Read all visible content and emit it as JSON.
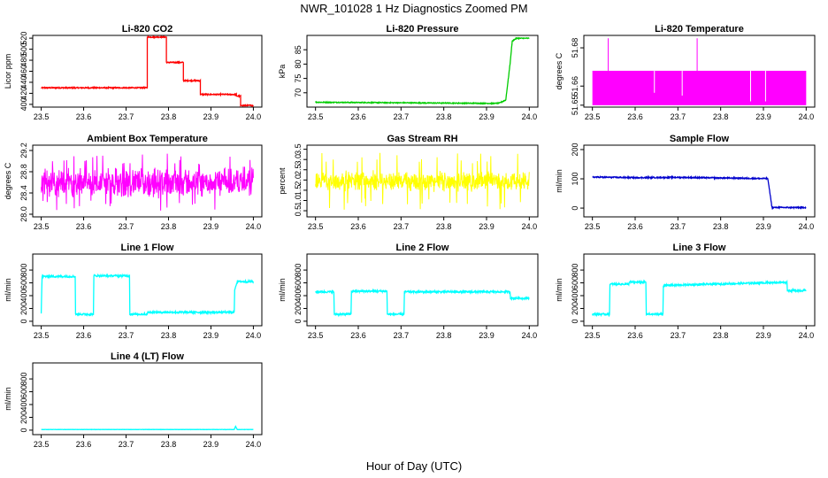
{
  "figure": {
    "title": "NWR_101028  1 Hz Diagnostics Zoomed PM",
    "xlabel": "Hour of Day (UTC)"
  },
  "chart_data": [
    {
      "id": "co2",
      "type": "line",
      "title": "Li-820 CO2",
      "ylabel": "Licor ppm",
      "xlim": [
        23.5,
        24.0
      ],
      "xticks": [
        "23.5",
        "23.6",
        "23.7",
        "23.8",
        "23.9",
        "24.0"
      ],
      "ylim": [
        395,
        525
      ],
      "yticks": [
        "400",
        "420",
        "440",
        "460",
        "480",
        "500",
        "520"
      ],
      "color": "#ff0000",
      "series": [
        {
          "name": "CO2",
          "noise": 1,
          "x": [
            23.5,
            23.75,
            23.75,
            23.795,
            23.795,
            23.835,
            23.835,
            23.875,
            23.875,
            23.96,
            23.96,
            23.97,
            23.97,
            24.0
          ],
          "values": [
            430,
            430,
            522,
            522,
            476,
            476,
            443,
            443,
            418,
            418,
            415,
            415,
            398,
            398
          ]
        }
      ]
    },
    {
      "id": "pressure",
      "type": "line",
      "title": "Li-820 Pressure",
      "ylabel": "kPa",
      "xlim": [
        23.5,
        24.0
      ],
      "xticks": [
        "23.5",
        "23.6",
        "23.7",
        "23.8",
        "23.9",
        "24.0"
      ],
      "ylim": [
        65,
        90
      ],
      "yticks": [
        "70",
        "75",
        "80",
        "85"
      ],
      "color": "#00cc00",
      "series": [
        {
          "name": "Pressure",
          "noise": 0.15,
          "x": [
            23.5,
            23.92,
            23.93,
            23.945,
            23.955,
            23.96,
            23.97,
            24.0
          ],
          "values": [
            66.7,
            66.3,
            66.4,
            67.5,
            80,
            88,
            89,
            89
          ]
        }
      ]
    },
    {
      "id": "licor-temp",
      "type": "line",
      "title": "Li-820 Temperature",
      "ylabel": "degrees C",
      "xlim": [
        23.5,
        24.0
      ],
      "xticks": [
        "23.5",
        "23.6",
        "23.7",
        "23.8",
        "23.9",
        "24.0"
      ],
      "ylim": [
        51.649,
        51.6865
      ],
      "yticks": [
        "51.65",
        "51.66",
        "51.68"
      ],
      "color": "#ff00ff",
      "band": [
        51.65,
        51.668
      ],
      "spikes_x": [
        23.537,
        23.745
      ],
      "spike_top": 51.685,
      "dips": [
        {
          "x": 23.645,
          "to": 51.6565
        },
        {
          "x": 23.71,
          "to": 51.655
        },
        {
          "x": 23.87,
          "to": 51.652
        },
        {
          "x": 23.905,
          "to": 51.652
        }
      ]
    },
    {
      "id": "box-temp",
      "type": "line",
      "title": "Ambient Box Temperature",
      "ylabel": "degrees C",
      "xlim": [
        23.5,
        24.0
      ],
      "xticks": [
        "23.5",
        "23.6",
        "23.7",
        "23.8",
        "23.9",
        "24.0"
      ],
      "ylim": [
        27.95,
        29.3
      ],
      "yticks": [
        "28.0",
        "28.4",
        "28.8",
        "29.2"
      ],
      "color": "#ff00ff",
      "noisy": {
        "center": 28.6,
        "spread": 0.32,
        "spike": 0.55
      }
    },
    {
      "id": "rh",
      "type": "line",
      "title": "Gas Stream RH",
      "ylabel": "percent",
      "xlim": [
        23.5,
        24.0
      ],
      "xticks": [
        "23.5",
        "23.6",
        "23.7",
        "23.8",
        "23.9",
        "24.0"
      ],
      "ylim": [
        0.2,
        3.7
      ],
      "yticks": [
        "0.5",
        "1.0",
        "1.5",
        "2.0",
        "2.5",
        "3.0",
        "3.5"
      ],
      "color": "#ffff00",
      "noisy": {
        "center": 1.95,
        "spread": 0.55,
        "spike": 1.4
      }
    },
    {
      "id": "sample-flow",
      "type": "line",
      "title": "Sample Flow",
      "ylabel": "ml/min",
      "xlim": [
        23.5,
        24.0
      ],
      "xticks": [
        "23.5",
        "23.6",
        "23.7",
        "23.8",
        "23.9",
        "24.0"
      ],
      "ylim": [
        -30,
        215
      ],
      "yticks": [
        "0",
        "100",
        "200"
      ],
      "color": "#0000cc",
      "series": [
        {
          "name": "Sample Flow",
          "noise": 2,
          "x": [
            23.5,
            23.6,
            23.7,
            23.8,
            23.9,
            23.91,
            23.915,
            23.92,
            24.0
          ],
          "values": [
            106,
            104,
            105,
            103,
            101,
            101,
            55,
            2,
            2
          ]
        }
      ]
    },
    {
      "id": "line1",
      "type": "line",
      "title": "Line 1 Flow",
      "ylabel": "ml/min",
      "xlim": [
        23.5,
        24.0
      ],
      "xticks": [
        "23.5",
        "23.6",
        "23.7",
        "23.8",
        "23.9",
        "24.0"
      ],
      "ylim": [
        -70,
        1050
      ],
      "yticks": [
        "0",
        "200",
        "400",
        "600",
        "800"
      ],
      "color": "#00ffff",
      "series": [
        {
          "name": "Line 1",
          "noise": 14,
          "x": [
            23.5,
            23.502,
            23.58,
            23.581,
            23.623,
            23.624,
            23.708,
            23.709,
            23.75,
            23.751,
            23.955,
            23.956,
            23.962,
            24.0
          ],
          "values": [
            120,
            700,
            700,
            110,
            110,
            710,
            710,
            110,
            110,
            140,
            140,
            500,
            620,
            620
          ]
        }
      ]
    },
    {
      "id": "line2",
      "type": "line",
      "title": "Line 2 Flow",
      "ylabel": "ml/min",
      "xlim": [
        23.5,
        24.0
      ],
      "xticks": [
        "23.5",
        "23.6",
        "23.7",
        "23.8",
        "23.9",
        "24.0"
      ],
      "ylim": [
        -70,
        1050
      ],
      "yticks": [
        "0",
        "200",
        "400",
        "600",
        "800"
      ],
      "color": "#00ffff",
      "series": [
        {
          "name": "Line 2",
          "noise": 14,
          "x": [
            23.5,
            23.543,
            23.544,
            23.583,
            23.584,
            23.667,
            23.668,
            23.707,
            23.708,
            23.955,
            23.956,
            24.0
          ],
          "values": [
            460,
            460,
            110,
            110,
            470,
            470,
            110,
            110,
            460,
            460,
            360,
            360
          ]
        }
      ]
    },
    {
      "id": "line3",
      "type": "line",
      "title": "Line 3 Flow",
      "ylabel": "ml/min",
      "xlim": [
        23.5,
        24.0
      ],
      "xticks": [
        "23.5",
        "23.6",
        "23.7",
        "23.8",
        "23.9",
        "24.0"
      ],
      "ylim": [
        -70,
        1050
      ],
      "yticks": [
        "0",
        "200",
        "400",
        "600",
        "800"
      ],
      "color": "#00ffff",
      "series": [
        {
          "name": "Line 3",
          "noise": 14,
          "x": [
            23.5,
            23.501,
            23.54,
            23.541,
            23.585,
            23.586,
            23.625,
            23.626,
            23.665,
            23.666,
            23.955,
            23.956,
            24.0
          ],
          "values": [
            100,
            110,
            110,
            580,
            580,
            610,
            610,
            110,
            110,
            560,
            610,
            480,
            480
          ]
        }
      ]
    },
    {
      "id": "line4",
      "type": "line",
      "title": "Line 4 (LT) Flow",
      "ylabel": "ml/min",
      "xlim": [
        23.5,
        24.0
      ],
      "xticks": [
        "23.5",
        "23.6",
        "23.7",
        "23.8",
        "23.9",
        "24.0"
      ],
      "ylim": [
        -70,
        1050
      ],
      "yticks": [
        "0",
        "200",
        "400",
        "600",
        "800"
      ],
      "color": "#00ffff",
      "series": [
        {
          "name": "Line 4",
          "noise": 2,
          "x": [
            23.5,
            23.955,
            23.958,
            23.962,
            24.0
          ],
          "values": [
            10,
            10,
            60,
            10,
            10
          ]
        }
      ]
    }
  ]
}
